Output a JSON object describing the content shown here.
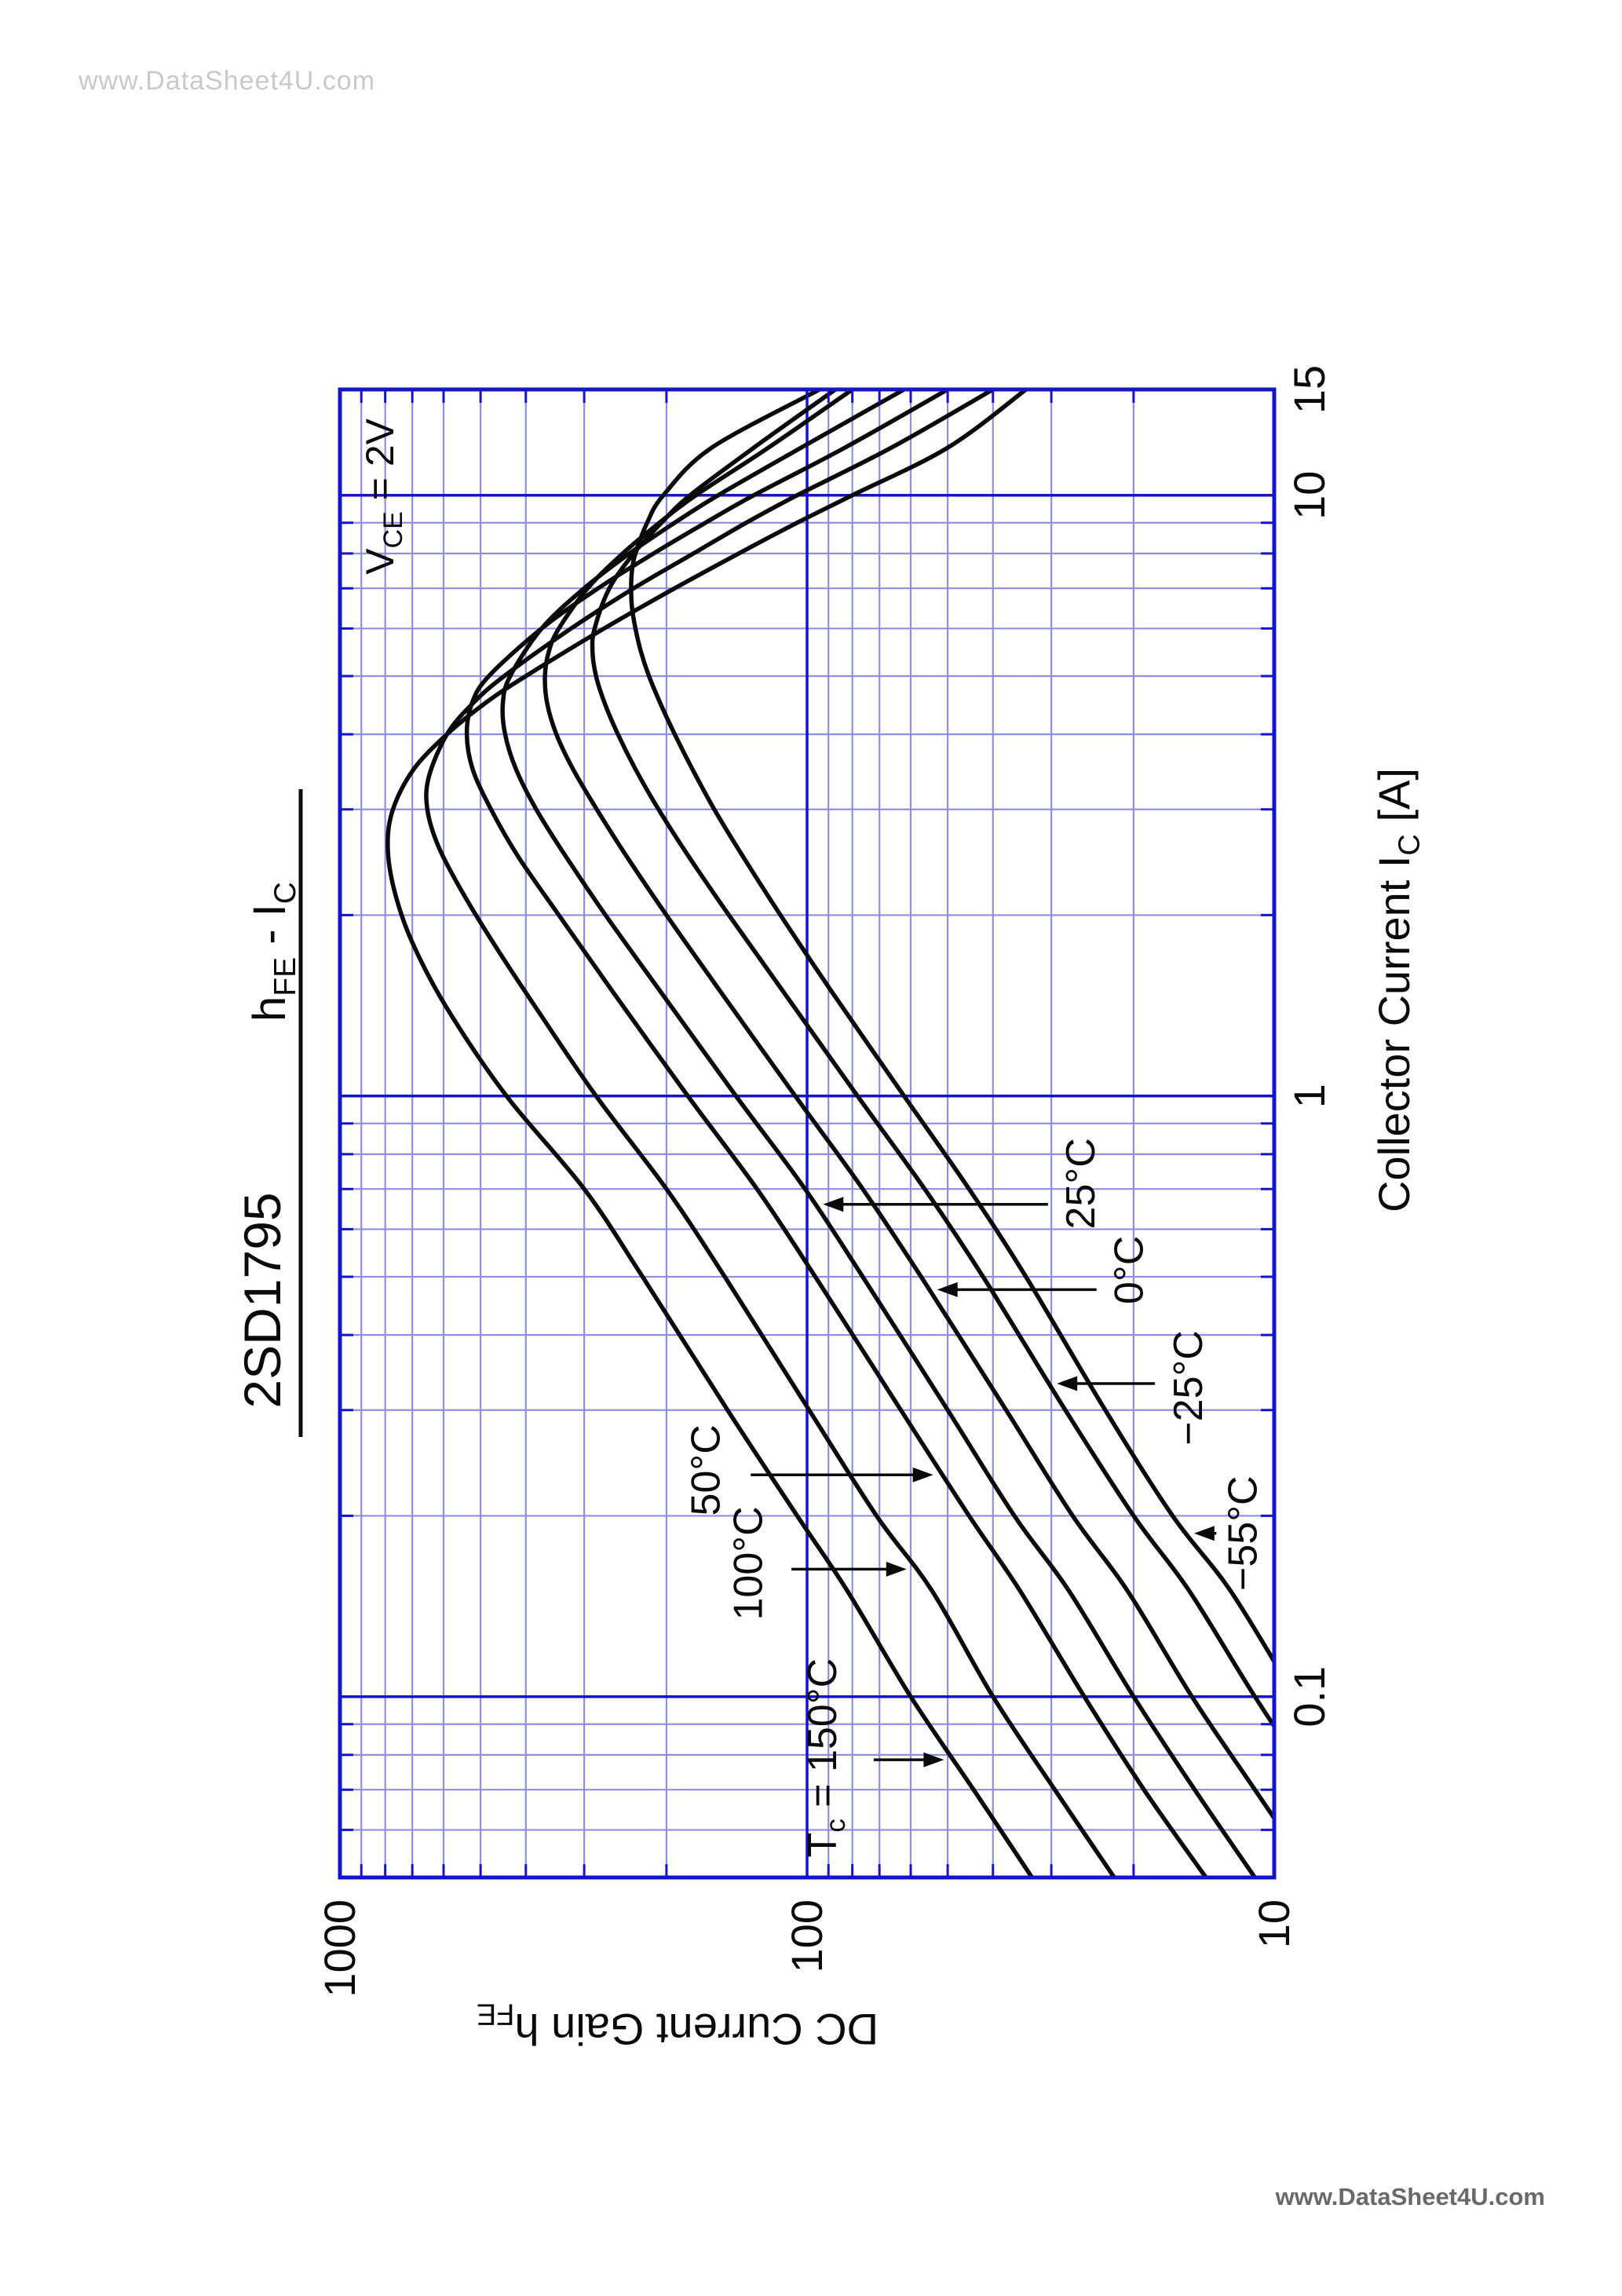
{
  "watermarks": {
    "top": "www.DataSheet4U.com",
    "bottom": "www.DataSheet4U.com"
  },
  "header": {
    "part_number": "2SD1795",
    "subtitle": "hFE - IC",
    "subtitle_parts": [
      {
        "t": "h"
      },
      {
        "t": "FE",
        "sub": true
      },
      {
        "t": " - I"
      },
      {
        "t": "C",
        "sub": true
      }
    ]
  },
  "chart_data": {
    "type": "line",
    "title": "2SD1795",
    "subtitle": "hFE - IC",
    "condition": "VCE = 2V",
    "condition_parts": [
      {
        "t": "V"
      },
      {
        "t": "CE",
        "sub": true
      },
      {
        "t": " = 2V"
      }
    ],
    "grid": "log-log, blue majors with light-blue minors, inward ticks on all four edges",
    "legend_position": "none (curves labelled with arrows)",
    "colors": {
      "grid_major": "#1414c8",
      "grid_minor": "#8f8fe2",
      "curve": "#0a0a0a"
    },
    "x_axis": {
      "label": "Collector Current IC [A]",
      "title_parts": [
        {
          "t": "Collector Current  I"
        },
        {
          "t": "C",
          "sub": true
        },
        {
          "t": " [A]"
        }
      ],
      "scale": "log",
      "min": 0.05,
      "max": 15,
      "ticks": [
        {
          "v": 0.1,
          "label": "0.1"
        },
        {
          "v": 1,
          "label": "1"
        },
        {
          "v": 10,
          "label": "10"
        },
        {
          "v": 15,
          "label": "15"
        }
      ],
      "minor": [
        0.06,
        0.07,
        0.08,
        0.09,
        0.2,
        0.3,
        0.4,
        0.5,
        0.6,
        0.7,
        0.8,
        0.9,
        2,
        3,
        4,
        5,
        6,
        7,
        8,
        9
      ]
    },
    "y_axis": {
      "label": "DC Current Gain hFE",
      "title_parts": [
        {
          "t": "DC Current Gain  h"
        },
        {
          "t": "FE",
          "sub": true
        }
      ],
      "scale": "log",
      "min": 10,
      "max": 1000,
      "ticks": [
        {
          "v": 1000,
          "label": "1000"
        },
        {
          "v": 100,
          "label": "100"
        },
        {
          "v": 10,
          "label": "10"
        }
      ],
      "minor": [
        20,
        30,
        40,
        50,
        60,
        70,
        80,
        90,
        200,
        300,
        400,
        500,
        600,
        700,
        800,
        900
      ]
    },
    "series": [
      {
        "key": "150",
        "name": "Tc = 150°C",
        "points": [
          [
            0.05,
            33
          ],
          [
            0.07,
            44
          ],
          [
            0.1,
            60
          ],
          [
            0.15,
            82
          ],
          [
            0.2,
            105
          ],
          [
            0.3,
            148
          ],
          [
            0.5,
            225
          ],
          [
            0.7,
            300
          ],
          [
            1,
            440
          ],
          [
            1.4,
            590
          ],
          [
            1.8,
            700
          ],
          [
            2.2,
            765
          ],
          [
            2.6,
            790
          ],
          [
            3,
            770
          ],
          [
            3.5,
            695
          ],
          [
            4,
            590
          ],
          [
            4.5,
            490
          ],
          [
            5,
            400
          ],
          [
            6,
            272
          ],
          [
            7,
            192
          ],
          [
            8,
            140
          ],
          [
            9,
            105
          ],
          [
            10,
            80
          ],
          [
            12,
            50
          ],
          [
            15,
            34
          ]
        ]
      },
      {
        "key": "100",
        "name": "100°C",
        "points": [
          [
            0.05,
            22
          ],
          [
            0.07,
            29.5
          ],
          [
            0.1,
            40
          ],
          [
            0.15,
            54
          ],
          [
            0.2,
            71
          ],
          [
            0.3,
            99
          ],
          [
            0.5,
            150
          ],
          [
            0.7,
            200
          ],
          [
            1,
            283
          ],
          [
            1.4,
            380
          ],
          [
            1.8,
            470
          ],
          [
            2.2,
            550
          ],
          [
            2.6,
            615
          ],
          [
            3,
            650
          ],
          [
            3.4,
            645
          ],
          [
            4,
            590
          ],
          [
            4.5,
            520
          ],
          [
            5,
            445
          ],
          [
            6,
            320
          ],
          [
            7,
            235
          ],
          [
            8,
            175
          ],
          [
            9,
            135
          ],
          [
            10,
            105
          ],
          [
            12,
            66
          ],
          [
            15,
            40
          ]
        ]
      },
      {
        "key": "50",
        "name": "50°C",
        "points": [
          [
            0.05,
            14
          ],
          [
            0.07,
            19
          ],
          [
            0.1,
            25.5
          ],
          [
            0.15,
            35
          ],
          [
            0.2,
            45
          ],
          [
            0.3,
            63
          ],
          [
            0.5,
            96
          ],
          [
            0.7,
            128
          ],
          [
            1,
            180
          ],
          [
            1.5,
            262
          ],
          [
            2,
            340
          ],
          [
            2.5,
            415
          ],
          [
            3,
            475
          ],
          [
            3.5,
            520
          ],
          [
            4,
            535
          ],
          [
            4.5,
            522
          ],
          [
            5,
            480
          ],
          [
            6,
            370
          ],
          [
            7,
            280
          ],
          [
            8,
            213
          ],
          [
            9,
            165
          ],
          [
            10,
            130
          ],
          [
            12,
            83
          ],
          [
            15,
            50
          ]
        ]
      },
      {
        "key": "25",
        "name": "25°C",
        "points": [
          [
            0.05,
            11
          ],
          [
            0.07,
            14.8
          ],
          [
            0.1,
            20
          ],
          [
            0.15,
            27.5
          ],
          [
            0.2,
            36
          ],
          [
            0.3,
            50
          ],
          [
            0.5,
            76
          ],
          [
            0.7,
            101
          ],
          [
            1,
            142
          ],
          [
            1.5,
            207
          ],
          [
            2,
            270
          ],
          [
            2.5,
            328
          ],
          [
            3,
            380
          ],
          [
            3.5,
            420
          ],
          [
            4,
            443
          ],
          [
            4.5,
            448
          ],
          [
            5,
            432
          ],
          [
            6,
            370
          ],
          [
            7,
            300
          ],
          [
            8,
            240
          ],
          [
            9,
            192
          ],
          [
            10,
            155
          ],
          [
            12,
            103
          ],
          [
            15,
            62
          ]
        ]
      },
      {
        "key": "0",
        "name": "0°C",
        "points": [
          [
            0.05,
            8.2
          ],
          [
            0.07,
            11
          ],
          [
            0.1,
            15
          ],
          [
            0.15,
            20.6
          ],
          [
            0.2,
            27
          ],
          [
            0.3,
            37.5
          ],
          [
            0.5,
            57
          ],
          [
            0.7,
            76
          ],
          [
            1,
            106
          ],
          [
            1.5,
            154
          ],
          [
            2,
            200
          ],
          [
            2.5,
            243
          ],
          [
            3,
            282
          ],
          [
            3.5,
            317
          ],
          [
            4,
            344
          ],
          [
            4.5,
            360
          ],
          [
            5,
            364
          ],
          [
            5.5,
            357
          ],
          [
            6,
            340
          ],
          [
            7,
            295
          ],
          [
            8,
            248
          ],
          [
            9,
            207
          ],
          [
            10,
            173
          ],
          [
            12,
            121
          ],
          [
            15,
            80
          ]
        ]
      },
      {
        "key": "-25",
        "name": "−25°C",
        "points": [
          [
            0.05,
            6
          ],
          [
            0.07,
            8.1
          ],
          [
            0.1,
            11
          ],
          [
            0.15,
            15.2
          ],
          [
            0.2,
            20
          ],
          [
            0.3,
            28
          ],
          [
            0.5,
            42
          ],
          [
            0.7,
            56
          ],
          [
            1,
            78
          ],
          [
            1.5,
            113
          ],
          [
            2,
            147
          ],
          [
            2.5,
            179
          ],
          [
            3,
            208
          ],
          [
            3.5,
            233
          ],
          [
            4,
            254
          ],
          [
            4.5,
            271
          ],
          [
            5,
            283
          ],
          [
            5.5,
            288
          ],
          [
            6,
            285
          ],
          [
            7,
            265
          ],
          [
            8,
            235
          ],
          [
            9,
            205
          ],
          [
            10,
            178
          ],
          [
            12,
            130
          ],
          [
            15,
            87
          ]
        ]
      },
      {
        "key": "-55",
        "name": "−55°C",
        "points": [
          [
            0.05,
            5
          ],
          [
            0.07,
            6.7
          ],
          [
            0.1,
            9
          ],
          [
            0.15,
            12.4
          ],
          [
            0.2,
            16.5
          ],
          [
            0.3,
            23
          ],
          [
            0.5,
            34
          ],
          [
            0.7,
            45
          ],
          [
            1,
            62
          ],
          [
            1.5,
            89
          ],
          [
            2,
            114
          ],
          [
            2.5,
            137
          ],
          [
            3,
            158
          ],
          [
            3.5,
            176
          ],
          [
            4,
            192
          ],
          [
            4.5,
            206
          ],
          [
            5,
            218
          ],
          [
            5.5,
            227
          ],
          [
            6,
            233
          ],
          [
            6.5,
            237
          ],
          [
            7,
            238
          ],
          [
            7.5,
            237
          ],
          [
            8,
            233
          ],
          [
            9,
            220
          ],
          [
            10,
            203
          ],
          [
            12,
            160
          ],
          [
            15,
            94
          ]
        ]
      }
    ],
    "annotations": [
      {
        "series": "150",
        "label": "Tc = 150°C",
        "parts": [
          {
            "t": "T"
          },
          {
            "t": "c",
            "sub": true
          },
          {
            "t": " = 150°C"
          }
        ],
        "text_ic": 0.054,
        "text_hfe": 93,
        "arrow_ic": 0.0785,
        "from_hfe": 72,
        "dir": "down"
      },
      {
        "series": "100",
        "label": "100°C",
        "parts": [
          {
            "t": "100°C"
          }
        ],
        "text_ic": 0.134,
        "text_hfe": 134,
        "arrow_ic": 0.163,
        "from_hfe": 108,
        "dir": "down"
      },
      {
        "series": "50",
        "label": "50°C",
        "parts": [
          {
            "t": "50°C"
          }
        ],
        "text_ic": 0.2,
        "text_hfe": 165,
        "arrow_ic": 0.234,
        "from_hfe": 132,
        "dir": "down"
      },
      {
        "series": "25",
        "label": "25°C",
        "parts": [
          {
            "t": "25°C"
          }
        ],
        "text_ic": 0.6,
        "text_hfe": 26,
        "arrow_ic": 0.66,
        "from_hfe": 30.5,
        "dir": "up"
      },
      {
        "series": "0",
        "label": "0°C",
        "parts": [
          {
            "t": "0°C"
          }
        ],
        "text_ic": 0.45,
        "text_hfe": 20.5,
        "arrow_ic": 0.476,
        "from_hfe": 24,
        "dir": "up"
      },
      {
        "series": "-25",
        "label": "−25°C",
        "parts": [
          {
            "t": "−25°C"
          }
        ],
        "text_ic": 0.262,
        "text_hfe": 15.3,
        "arrow_ic": 0.332,
        "from_hfe": 18,
        "dir": "up"
      },
      {
        "series": "-55",
        "label": "−55°C",
        "parts": [
          {
            "t": "−55°C"
          }
        ],
        "text_ic": 0.15,
        "text_hfe": 11.7,
        "arrow_ic": 0.187,
        "from_hfe": 13.3,
        "dir": "up"
      }
    ]
  }
}
